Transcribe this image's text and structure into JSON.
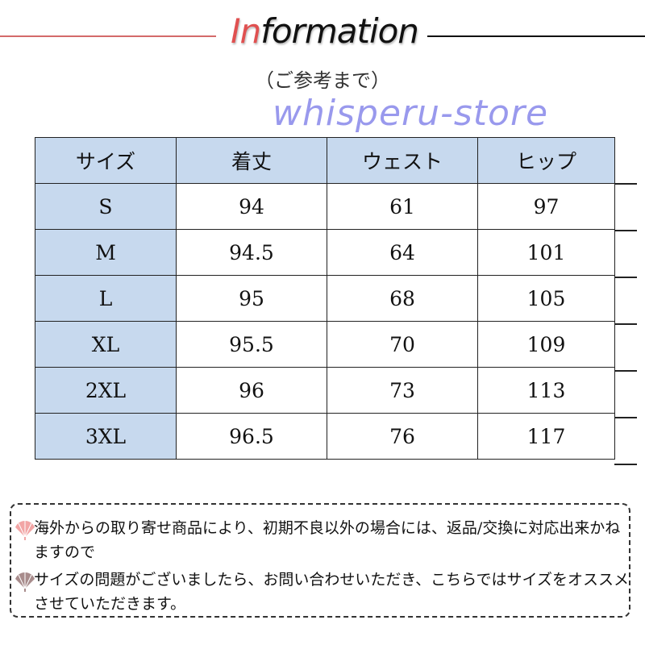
{
  "header": {
    "title_accent": "In",
    "title_rest": "formation",
    "subtitle": "（ご参考まで）"
  },
  "table": {
    "headers": [
      "サイズ",
      "着丈",
      "ウェスト",
      "ヒップ"
    ],
    "rows": [
      [
        "S",
        "94",
        "61",
        "97"
      ],
      [
        "M",
        "94.5",
        "64",
        "101"
      ],
      [
        "L",
        "95",
        "68",
        "105"
      ],
      [
        "XL",
        "95.5",
        "70",
        "109"
      ],
      [
        "2XL",
        "96",
        "73",
        "113"
      ],
      [
        "3XL",
        "96.5",
        "76",
        "117"
      ]
    ],
    "header_color": "#c7d9ee"
  },
  "watermark": "whisperu-store",
  "notes": [
    {
      "icon": "pink-fan-icon",
      "color": "#f0a0a0",
      "text": "海外からの取り寄せ商品により、初期不良以外の場合には、返品/交換に対応出来かねますので"
    },
    {
      "icon": "mauve-fan-icon",
      "color": "#a88c8c",
      "text": "サイズの問題がございましたら、お問い合わせいただき、こちらではサイズをオススメさせていただきます。"
    }
  ]
}
